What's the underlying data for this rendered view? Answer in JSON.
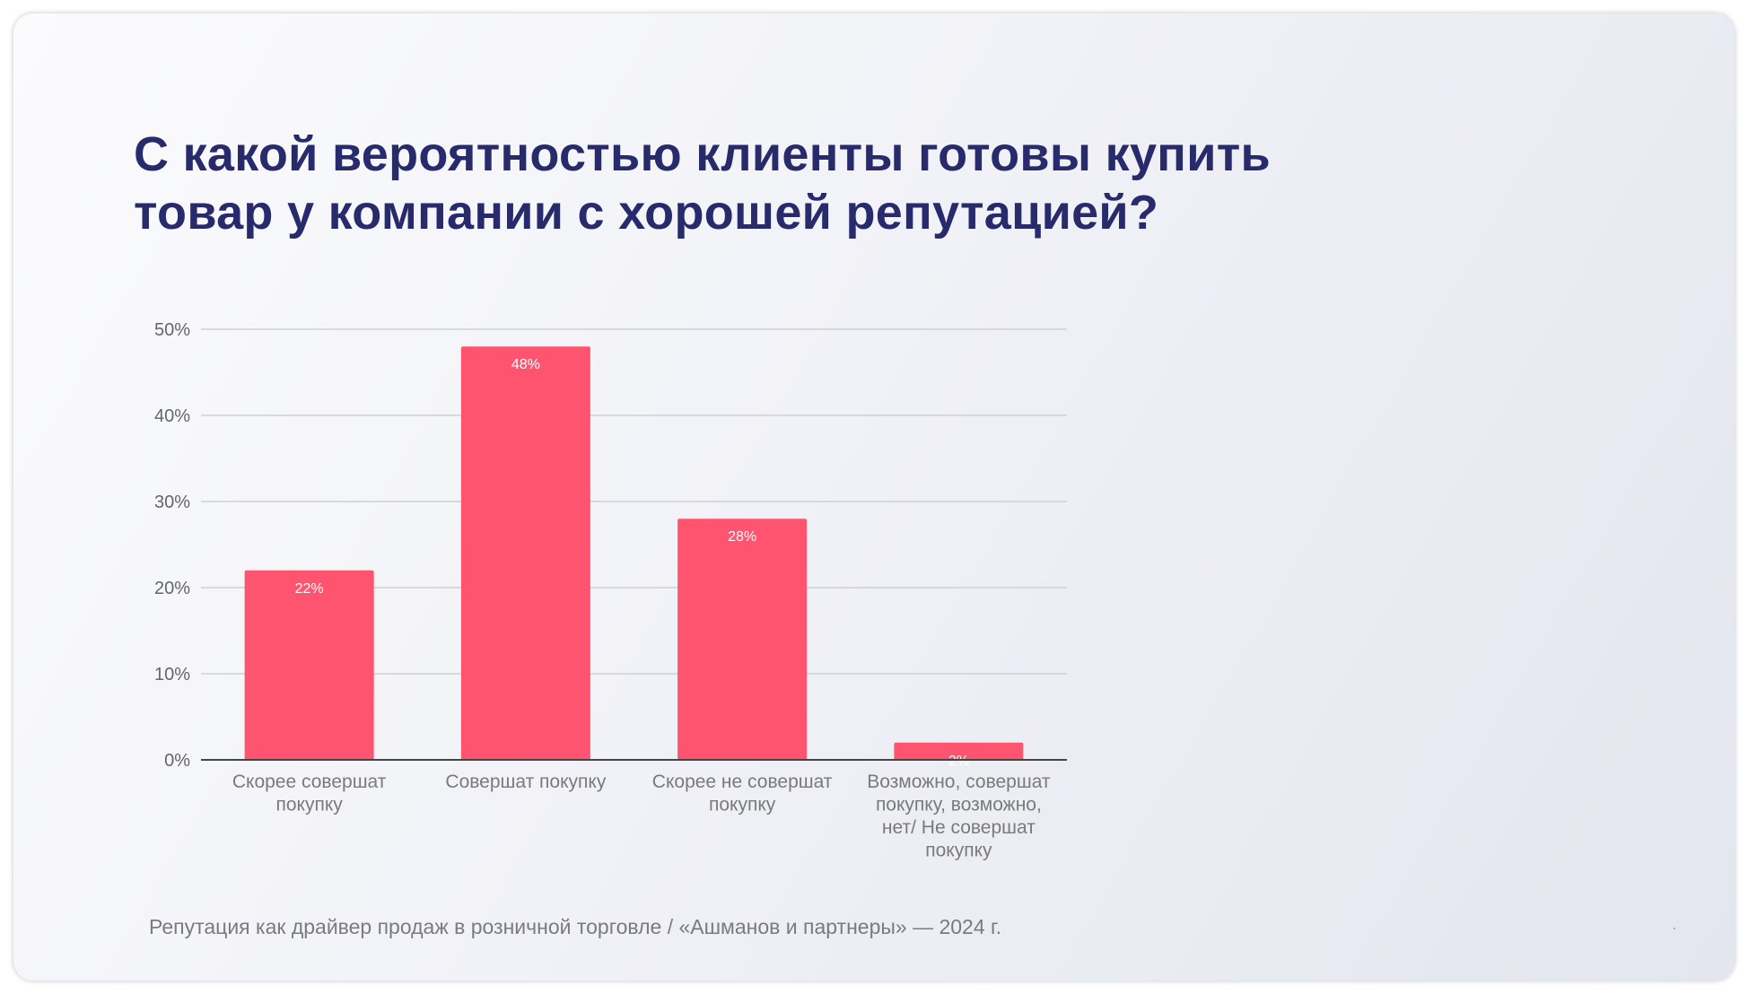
{
  "title": {
    "line1": "С какой вероятностью клиенты готовы купить",
    "line2": "товар у компании с хорошей репутацией?"
  },
  "chart_data": {
    "type": "bar",
    "title": "С какой вероятностью клиенты готовы купить товар у компании с хорошей репутацией?",
    "categories": [
      [
        "Скорее совершат",
        "покупку"
      ],
      [
        "Совершат покупку"
      ],
      [
        "Скорее не совершат",
        "покупку"
      ],
      [
        "Возможно, совершат",
        "покупку, возможно,",
        "нет/ Не совершат",
        "покупку"
      ]
    ],
    "values": [
      22,
      48,
      28,
      2
    ],
    "data_labels": [
      "22%",
      "48%",
      "28%",
      "2%"
    ],
    "yticks": [
      0,
      10,
      20,
      30,
      40,
      50
    ],
    "ytick_labels": [
      "0%",
      "10%",
      "20%",
      "30%",
      "40%",
      "50%"
    ],
    "ylim": [
      0,
      50
    ],
    "xlabel": "",
    "ylabel": "",
    "grid": true,
    "bar_color": "#ff5470"
  },
  "footer": "Репутация как драйвер продаж в розничной торговле / «Ашманов и партнеры» — 2024 г."
}
